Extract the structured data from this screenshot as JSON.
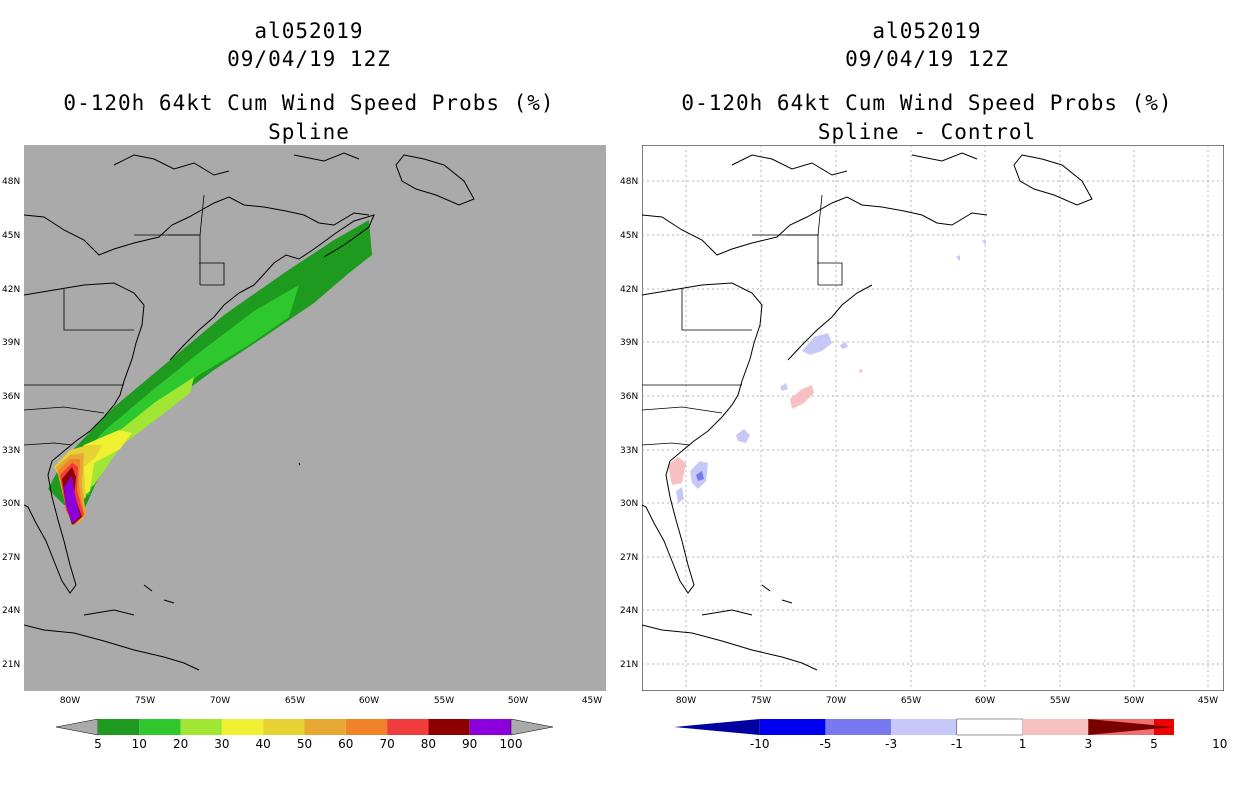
{
  "left_panel": {
    "storm_id": "al052019",
    "datetime": "09/04/19 12Z",
    "product": "0-120h 64kt Cum Wind Speed Probs (%)",
    "subtitle": "Spline",
    "colorbar": {
      "labels": [
        "5",
        "10",
        "20",
        "30",
        "40",
        "50",
        "60",
        "70",
        "80",
        "90",
        "100"
      ],
      "colors": [
        "#1e9a1e",
        "#2ec82e",
        "#a0e632",
        "#f0f032",
        "#e6d232",
        "#e6a832",
        "#f08228",
        "#f03c3c",
        "#8c0000",
        "#8c00dc"
      ],
      "end_color": "#aaaaaa"
    }
  },
  "right_panel": {
    "storm_id": "al052019",
    "datetime": "09/04/19 12Z",
    "product": "0-120h 64kt Cum Wind Speed Probs (%)",
    "subtitle": "Spline - Control",
    "colorbar": {
      "labels": [
        "-10",
        "-5",
        "-3",
        "-1",
        "1",
        "3",
        "5",
        "10"
      ],
      "colors": [
        "#0000a0",
        "#0000f0",
        "#7878f0",
        "#c8c8f8",
        "#ffffff",
        "#f8c0c0",
        "#f07070",
        "#f00000",
        "#7a0000"
      ]
    }
  },
  "axes": {
    "lat_labels": [
      "48N",
      "45N",
      "42N",
      "39N",
      "36N",
      "33N",
      "30N",
      "27N",
      "24N",
      "21N"
    ],
    "lon_labels": [
      "80W",
      "75W",
      "70W",
      "65W",
      "60W",
      "55W",
      "50W",
      "45W"
    ]
  }
}
